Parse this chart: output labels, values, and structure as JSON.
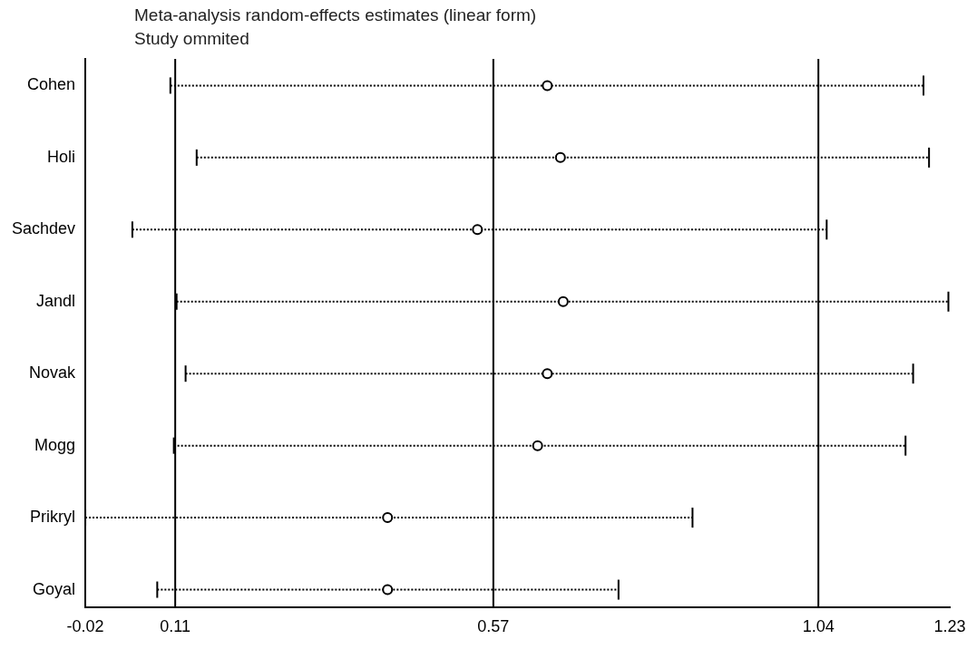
{
  "chart_data": {
    "type": "scatter",
    "orientation": "horizontal",
    "title": "Meta-analysis random-effects estimates (linear form)",
    "subtitle": "Study ommited",
    "categories": [
      "Cohen",
      "Holi",
      "Sachdev",
      "Jandl",
      "Novak",
      "Mogg",
      "Prikryl",
      "Goyal"
    ],
    "values": [
      0.648,
      0.667,
      0.547,
      0.671,
      0.648,
      0.634,
      0.417,
      0.417
    ],
    "errors": [
      [
        0.103,
        1.192
      ],
      [
        0.141,
        1.2
      ],
      [
        0.048,
        1.052
      ],
      [
        0.112,
        1.228
      ],
      [
        0.125,
        1.177
      ],
      [
        0.108,
        1.166
      ],
      [
        -0.02,
        0.858
      ],
      [
        0.084,
        0.751
      ]
    ],
    "color": "#000000",
    "marker": "circle",
    "line_style": "dotted",
    "xlim": [
      -0.02,
      1.23
    ],
    "xticks": [
      -0.02,
      0.11,
      0.57,
      1.04,
      1.23
    ],
    "ref_lines": [
      {
        "axis": "x",
        "value": 0.11,
        "color": "#000000"
      },
      {
        "axis": "x",
        "value": 0.57,
        "color": "#000000"
      },
      {
        "axis": "x",
        "value": 1.04,
        "color": "#000000"
      }
    ],
    "grid": false,
    "legend": false
  }
}
